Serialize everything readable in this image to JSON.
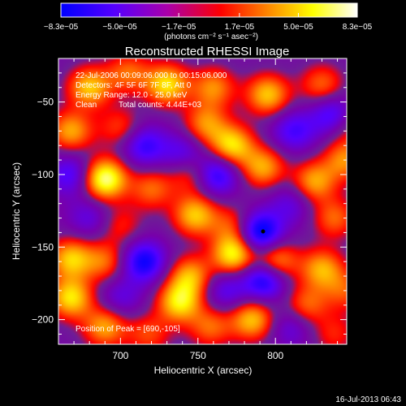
{
  "chart_data": {
    "type": "heatmap",
    "title": "Reconstructed RHESSI Image",
    "xlabel": "Heliocentric X (arcsec)",
    "ylabel": "Heliocentric Y (arcsec)",
    "xlim": [
      660,
      846
    ],
    "ylim": [
      -217,
      -20
    ],
    "x_ticks": [
      {
        "v": 700,
        "label": "700"
      },
      {
        "v": 750,
        "label": "750"
      },
      {
        "v": 800,
        "label": "800"
      }
    ],
    "y_ticks": [
      {
        "v": -50,
        "label": "−50"
      },
      {
        "v": -100,
        "label": "−100"
      },
      {
        "v": -150,
        "label": "−150"
      },
      {
        "v": -200,
        "label": "−200"
      }
    ],
    "colorbar": {
      "range": [
        -8.3e-05,
        8.3e-05
      ],
      "tick_values": [
        -8.3e-05,
        -5e-05,
        -1.7e-05,
        1.7e-05,
        5e-05,
        8.3e-05
      ],
      "tick_labels": [
        "−8.3e−05",
        "−5.0e−05",
        "−1.7e−05",
        "1.7e−05",
        "5.0e−05",
        "8.3e−05"
      ],
      "units_label": "(photons cm⁻² s⁻¹ asec⁻²)",
      "colors": [
        "#0000ff",
        "#5500ff",
        "#aa00aa",
        "#ff0000",
        "#ff8800",
        "#ffff00",
        "#ffffff"
      ]
    },
    "annotations": {
      "time_range": "22-Jul-2006 00:09:06.000 to 00:15:06.000",
      "detectors": "Detectors: 4F 5F 6F 7F 8F, Att 0",
      "energy_range": "Energy Range: 12.0 - 25.0 keV",
      "method": "Clean",
      "total_counts": "Total counts: 4.44E+03",
      "peak": "Position of Peak = [690,-105]"
    },
    "blobs": [
      {
        "x": 680,
        "y": -40,
        "v": 0.9
      },
      {
        "x": 705,
        "y": -30,
        "v": 0.6
      },
      {
        "x": 730,
        "y": -38,
        "v": 1.0
      },
      {
        "x": 760,
        "y": -40,
        "v": 0.7
      },
      {
        "x": 795,
        "y": -45,
        "v": 0.9
      },
      {
        "x": 830,
        "y": -38,
        "v": 0.6
      },
      {
        "x": 668,
        "y": -70,
        "v": 0.8
      },
      {
        "x": 700,
        "y": -68,
        "v": 0.5
      },
      {
        "x": 755,
        "y": -65,
        "v": 0.7
      },
      {
        "x": 772,
        "y": -80,
        "v": 1.0
      },
      {
        "x": 845,
        "y": -65,
        "v": 0.6
      },
      {
        "x": 715,
        "y": -80,
        "v": -0.7
      },
      {
        "x": 740,
        "y": -85,
        "v": -0.5
      },
      {
        "x": 812,
        "y": -70,
        "v": -0.6
      },
      {
        "x": 838,
        "y": -60,
        "v": -0.9
      },
      {
        "x": 690,
        "y": -103,
        "v": 1.3
      },
      {
        "x": 720,
        "y": -110,
        "v": 0.6
      },
      {
        "x": 745,
        "y": -100,
        "v": 0.5
      },
      {
        "x": 792,
        "y": -95,
        "v": 0.8
      },
      {
        "x": 825,
        "y": -105,
        "v": 0.8
      },
      {
        "x": 845,
        "y": -90,
        "v": 0.7
      },
      {
        "x": 668,
        "y": -100,
        "v": -0.6
      },
      {
        "x": 762,
        "y": -100,
        "v": -0.8
      },
      {
        "x": 680,
        "y": -130,
        "v": -0.4
      },
      {
        "x": 700,
        "y": -135,
        "v": 0.4
      },
      {
        "x": 748,
        "y": -128,
        "v": 0.9
      },
      {
        "x": 772,
        "y": -135,
        "v": 0.5
      },
      {
        "x": 838,
        "y": -130,
        "v": 0.6
      },
      {
        "x": 790,
        "y": -140,
        "v": -1.1
      },
      {
        "x": 810,
        "y": -120,
        "v": -0.4
      },
      {
        "x": 668,
        "y": -158,
        "v": 0.9
      },
      {
        "x": 690,
        "y": -160,
        "v": 0.6
      },
      {
        "x": 715,
        "y": -160,
        "v": -0.9
      },
      {
        "x": 745,
        "y": -170,
        "v": 0.8
      },
      {
        "x": 773,
        "y": -155,
        "v": 1.1
      },
      {
        "x": 800,
        "y": -160,
        "v": 0.9
      },
      {
        "x": 830,
        "y": -165,
        "v": 0.8
      },
      {
        "x": 668,
        "y": -185,
        "v": 1.0
      },
      {
        "x": 700,
        "y": -185,
        "v": -0.4
      },
      {
        "x": 738,
        "y": -188,
        "v": 1.0
      },
      {
        "x": 768,
        "y": -180,
        "v": -0.5
      },
      {
        "x": 793,
        "y": -172,
        "v": -1.0
      },
      {
        "x": 820,
        "y": -190,
        "v": 0.6
      },
      {
        "x": 845,
        "y": -180,
        "v": 0.5
      },
      {
        "x": 690,
        "y": -205,
        "v": 0.8
      },
      {
        "x": 718,
        "y": -210,
        "v": 0.5
      },
      {
        "x": 758,
        "y": -205,
        "v": 0.6
      },
      {
        "x": 785,
        "y": -200,
        "v": 0.9
      },
      {
        "x": 838,
        "y": -210,
        "v": 0.4
      },
      {
        "x": 810,
        "y": -205,
        "v": -0.4
      }
    ]
  },
  "footer": {
    "timestamp": "16-Jul-2013 06:43"
  }
}
